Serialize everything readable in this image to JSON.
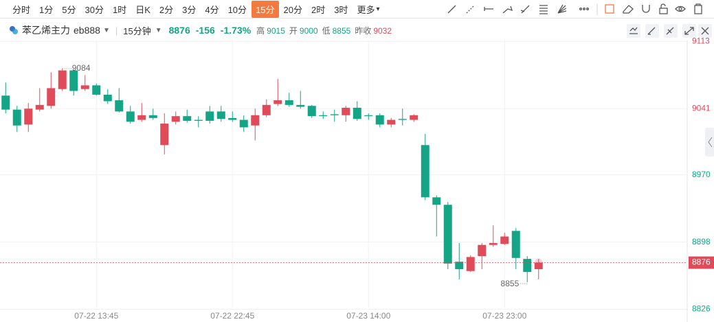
{
  "toolbar": {
    "periods": [
      {
        "label": "分时"
      },
      {
        "label": "1分"
      },
      {
        "label": "5分"
      },
      {
        "label": "30分"
      },
      {
        "label": "1时"
      },
      {
        "label": "日K"
      },
      {
        "label": "2分"
      },
      {
        "label": "3分"
      },
      {
        "label": "4分"
      },
      {
        "label": "10分"
      },
      {
        "label": "15分",
        "active": true
      },
      {
        "label": "20分"
      },
      {
        "label": "2时"
      },
      {
        "label": "3时"
      },
      {
        "label": "更多"
      }
    ]
  },
  "header": {
    "name": "苯乙烯主力",
    "code": "eb888",
    "period": "15分钟",
    "price": "8876",
    "change": "-156",
    "change_pct": "-1.73%",
    "stats": [
      {
        "label": "高",
        "value": "9015"
      },
      {
        "label": "开",
        "value": "9000"
      },
      {
        "label": "低",
        "value": "8855"
      },
      {
        "label": "昨收",
        "value": "9032"
      }
    ],
    "prev_close": 9032
  },
  "chart_data": {
    "type": "candlestick",
    "categories": [
      null,
      null,
      null,
      null,
      null,
      null,
      null,
      null,
      "07-22 13:45",
      null,
      null,
      null,
      null,
      null,
      null,
      null,
      null,
      null,
      null,
      null,
      "07-22 22:45",
      null,
      null,
      null,
      null,
      null,
      null,
      null,
      null,
      null,
      null,
      null,
      "07-23 14:00",
      null,
      null,
      null,
      null,
      null,
      null,
      null,
      null,
      null,
      null,
      null,
      "07-23 23:00",
      null,
      null,
      null
    ],
    "open": [
      9055,
      9040,
      9024,
      9040,
      9044,
      9062,
      9082,
      9062,
      9066,
      9056,
      9050,
      9038,
      9029,
      9034,
      9002,
      9027,
      9033,
      9029,
      9038,
      9038,
      9031,
      9029,
      9023,
      9034,
      9046,
      9050,
      9045,
      9044,
      9034,
      9035,
      9034,
      9042,
      9034,
      9034,
      9024,
      9030,
      9029,
      9002,
      8946,
      8938,
      8877,
      8867,
      8883,
      8895,
      8896,
      8910,
      8880,
      8869
    ],
    "high": [
      9069,
      9044,
      9047,
      9063,
      9080,
      9084,
      9083,
      9077,
      9068,
      9062,
      9063,
      9044,
      9047,
      9041,
      9036,
      9038,
      9040,
      9033,
      9044,
      9044,
      9038,
      9034,
      9041,
      9051,
      9073,
      9058,
      9060,
      9045,
      9038,
      9040,
      9044,
      9049,
      9036,
      9036,
      9031,
      9041,
      9035,
      9014,
      8948,
      8941,
      8897,
      8884,
      8897,
      8916,
      8908,
      8913,
      8883,
      8880
    ],
    "low": [
      9036,
      9016,
      9016,
      9038,
      9041,
      9060,
      9055,
      9060,
      9055,
      9046,
      9037,
      9025,
      9027,
      9029,
      8992,
      9024,
      9026,
      9021,
      9025,
      9027,
      9027,
      9016,
      9007,
      9032,
      9044,
      9043,
      9041,
      9031,
      9030,
      9027,
      9027,
      9028,
      9029,
      9021,
      9021,
      9023,
      9027,
      8943,
      8904,
      8869,
      8858,
      8866,
      8869,
      8893,
      8895,
      8869,
      8855,
      8858
    ],
    "close": [
      9040,
      9023,
      9041,
      9045,
      9063,
      9082,
      9060,
      9066,
      9056,
      9049,
      9038,
      9027,
      9034,
      9031,
      9025,
      9033,
      9028,
      9028,
      9028,
      9030,
      9029,
      9021,
      9034,
      9045,
      9050,
      9045,
      9043,
      9033,
      9033,
      9034,
      9042,
      9030,
      9033,
      9024,
      9029,
      9029,
      9034,
      8946,
      8938,
      8875,
      8869,
      8882,
      8895,
      8897,
      8904,
      8881,
      8866,
      8876
    ],
    "ylim": [
      8819,
      9117
    ],
    "yticks": [
      9113,
      9041,
      8970,
      8898,
      8826
    ],
    "grid": true,
    "up_color": "#e04b5a",
    "down_color": "#13a586",
    "high_label": 9084,
    "low_label": 8855,
    "last_price": 8876
  }
}
